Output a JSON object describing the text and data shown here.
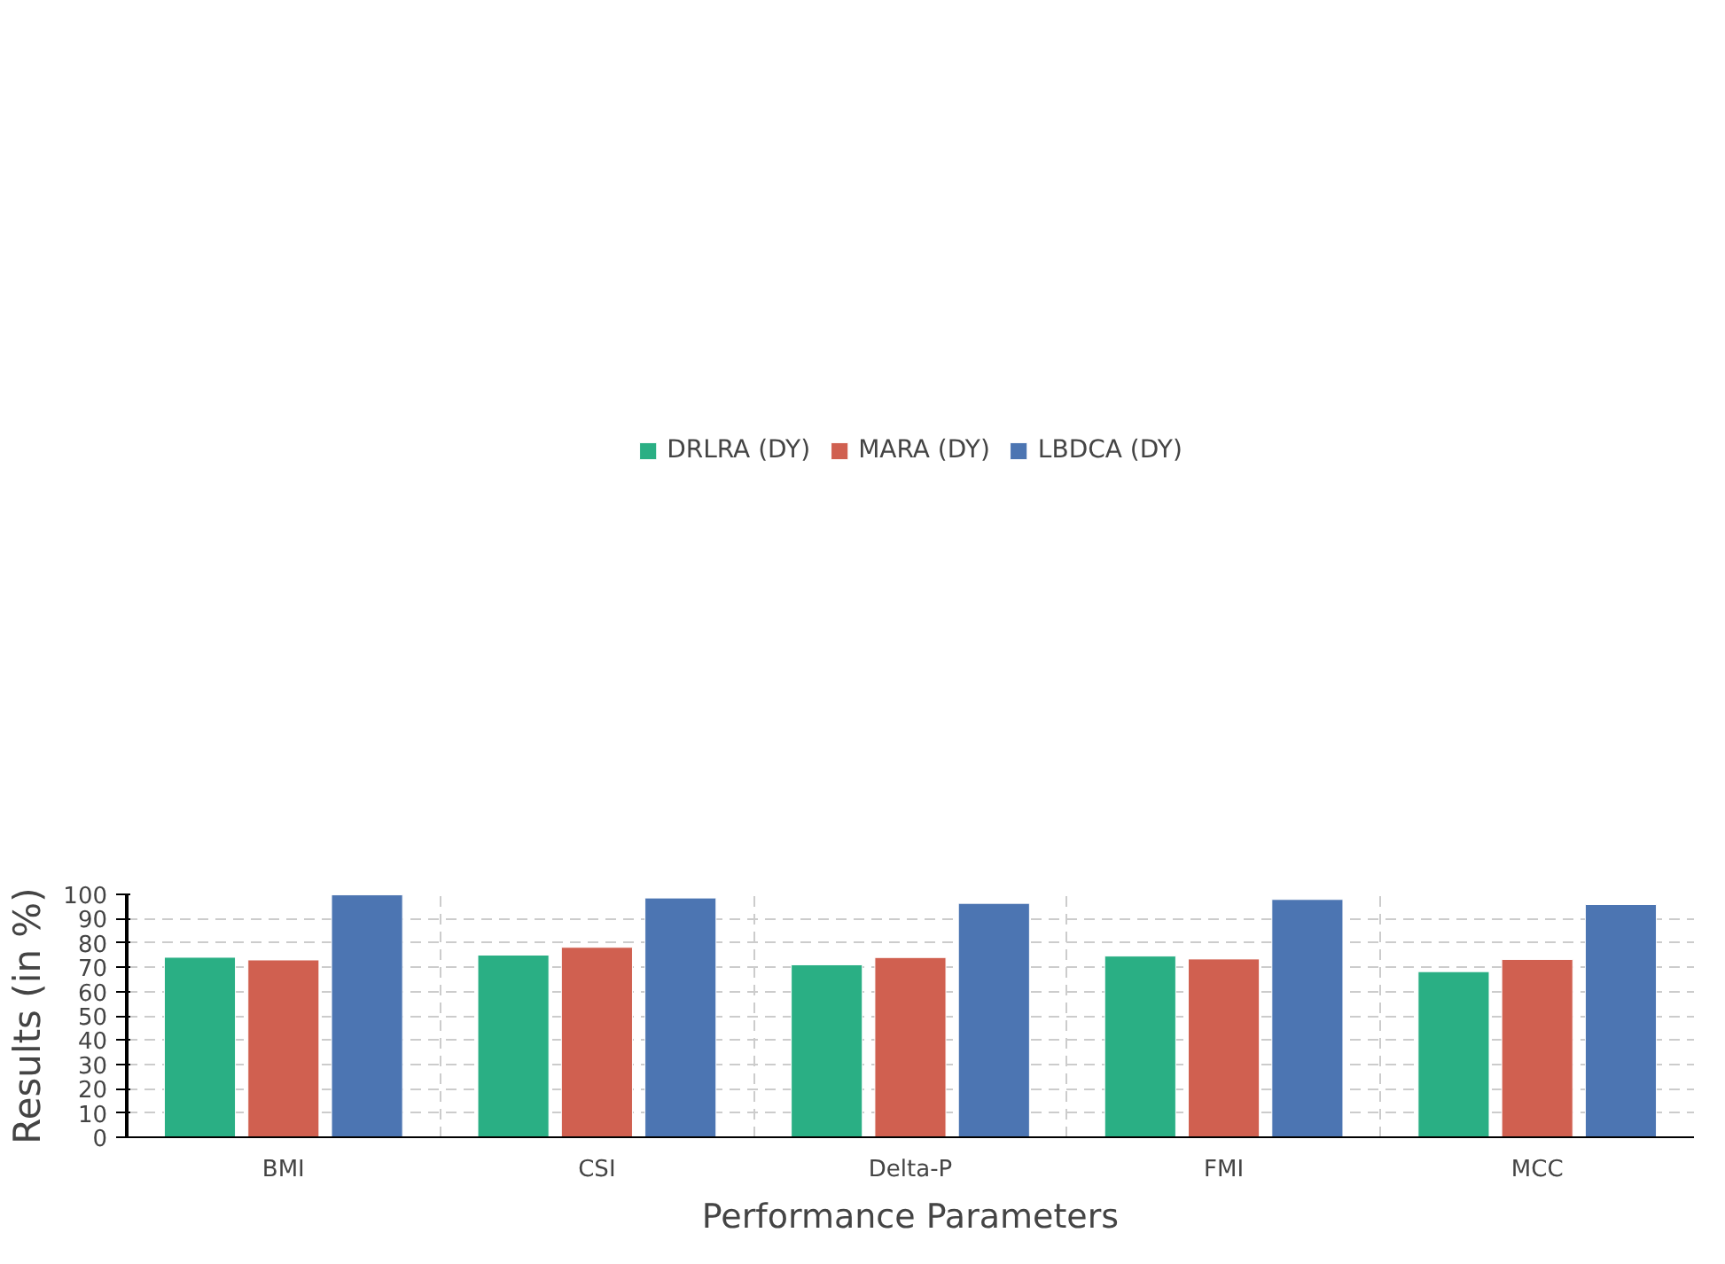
{
  "chart_data": {
    "type": "bar",
    "xlabel": "Performance Parameters",
    "ylabel": "Results (in %)",
    "categories": [
      "BMI",
      "CSI",
      "Delta-P",
      "FMI",
      "MCC"
    ],
    "series": [
      {
        "name": "DRLRA (DY)",
        "color": "#2aaf84",
        "values": [
          74.1,
          75.0,
          71.0,
          74.6,
          68.2
        ]
      },
      {
        "name": "MARA (DY)",
        "color": "#d06050",
        "values": [
          73.0,
          78.2,
          74.0,
          73.4,
          73.2
        ]
      },
      {
        "name": "LBDCA (DY)",
        "color": "#4c75b2",
        "values": [
          99.8,
          98.5,
          96.3,
          97.9,
          95.8
        ]
      }
    ],
    "ylim": [
      0,
      100
    ],
    "yticks": [
      0,
      10,
      20,
      30,
      40,
      50,
      60,
      70,
      80,
      90,
      100
    ],
    "grid": true,
    "legend": "top"
  }
}
